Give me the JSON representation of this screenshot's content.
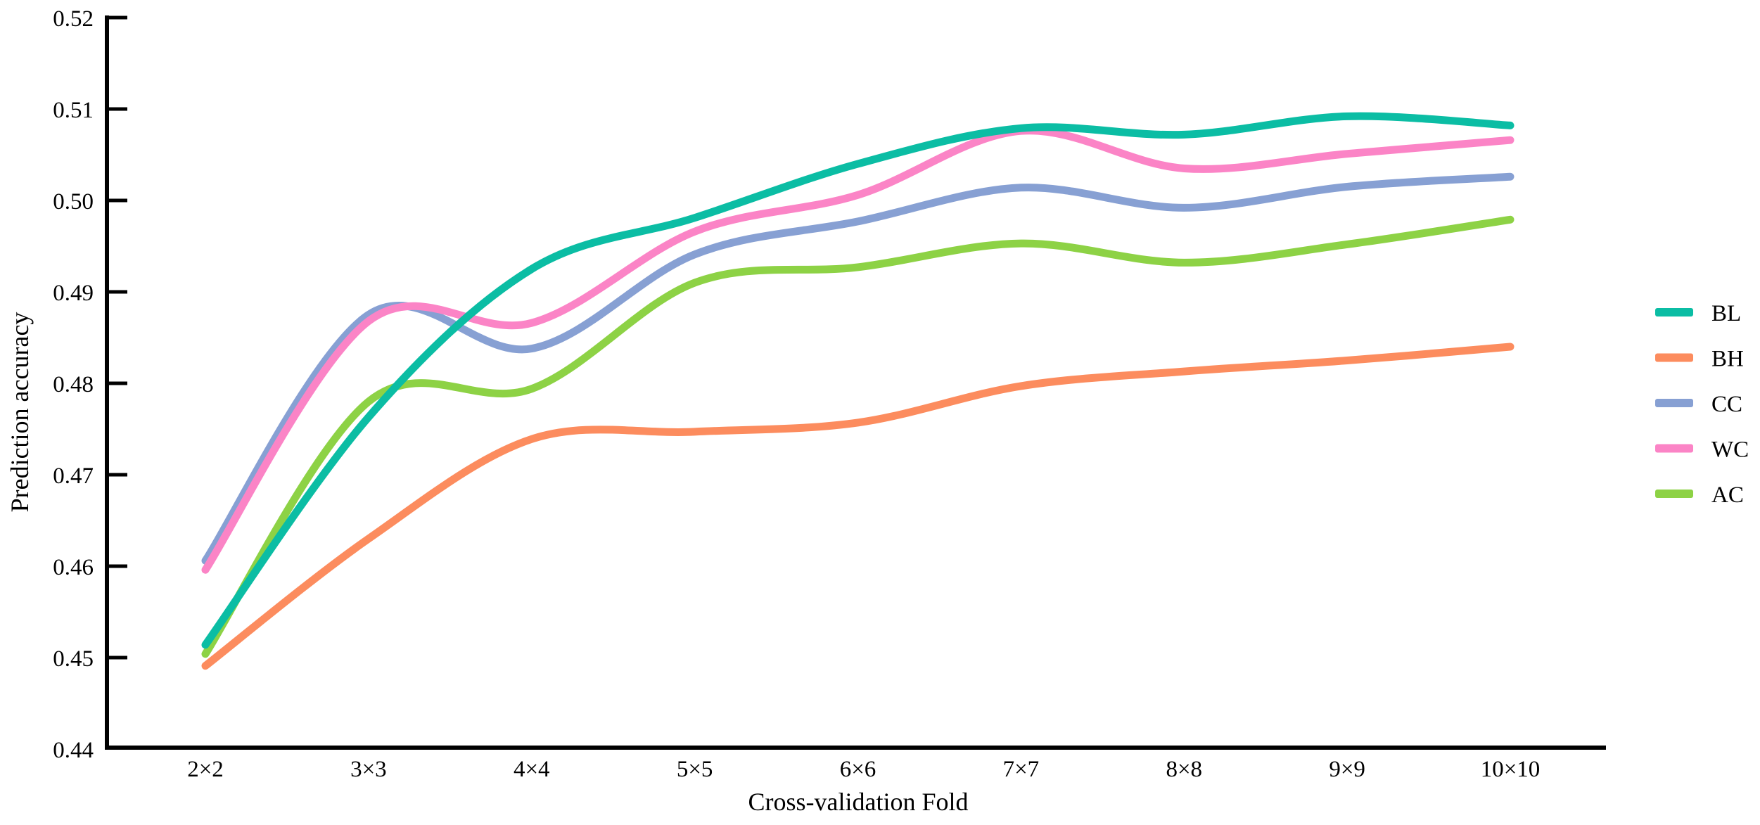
{
  "figure": {
    "background": "#ffffff",
    "text_color": "#000000",
    "axis_color": "#000000"
  },
  "chart_data": {
    "type": "line",
    "title": "",
    "xlabel": "Cross-validation Fold",
    "ylabel": "Prediction accuracy",
    "categories": [
      "2×2",
      "3×3",
      "4×4",
      "5×5",
      "6×6",
      "7×7",
      "8×8",
      "9×9",
      "10×10"
    ],
    "ylim": [
      0.44,
      0.52
    ],
    "ytick_step": 0.01,
    "ytick_labels": [
      "0.44",
      "0.45",
      "0.46",
      "0.47",
      "0.48",
      "0.49",
      "0.50",
      "0.51",
      "0.52"
    ],
    "grid": "off",
    "legend_position": "right-outside",
    "legend_order": [
      "BL",
      "BH",
      "CC",
      "WC",
      "AC"
    ],
    "line_smoothing": "spline",
    "series": [
      {
        "name": "BL",
        "color": "#0bbda4",
        "values": [
          0.4514,
          0.4763,
          0.4925,
          0.4981,
          0.504,
          0.5079,
          0.5072,
          0.5092,
          0.5082
        ]
      },
      {
        "name": "BH",
        "color": "#fc8c5e",
        "values": [
          0.4491,
          0.463,
          0.4739,
          0.4747,
          0.4757,
          0.4797,
          0.4813,
          0.4825,
          0.484
        ]
      },
      {
        "name": "CC",
        "color": "#87a0d3",
        "values": [
          0.4606,
          0.4875,
          0.4838,
          0.4941,
          0.4977,
          0.5014,
          0.4992,
          0.5015,
          0.5026
        ]
      },
      {
        "name": "WC",
        "color": "#fb84c6",
        "values": [
          0.4596,
          0.4868,
          0.4866,
          0.4966,
          0.5006,
          0.5076,
          0.5035,
          0.5051,
          0.5066
        ]
      },
      {
        "name": "AC",
        "color": "#8dd245",
        "values": [
          0.4504,
          0.478,
          0.4794,
          0.491,
          0.4927,
          0.4953,
          0.4932,
          0.4952,
          0.4979
        ]
      }
    ]
  }
}
